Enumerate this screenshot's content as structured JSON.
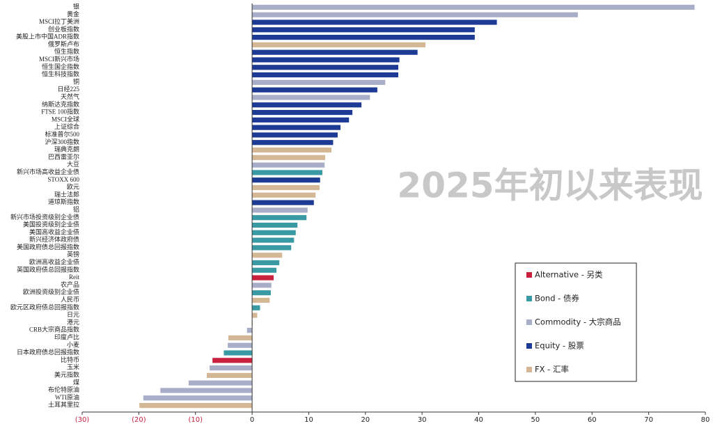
{
  "chart_data": {
    "type": "bar",
    "orientation": "horizontal",
    "title": "2025年初以来表现",
    "categories": [
      "银",
      "黄金",
      "MSCI拉丁美洲",
      "创业板指数",
      "美股上市中国ADR指数",
      "俄罗斯卢布",
      "恒生指数",
      "MSCI新兴市场",
      "恒生国企指数",
      "恒生科技指数",
      "铜",
      "日经225",
      "天然气",
      "纳斯达克指数",
      "FTSE 100指数",
      "MSCI全球",
      "上证综合",
      "标准普尔500",
      "沪深300指数",
      "瑞典克朗",
      "巴西雷亚尔",
      "大豆",
      "新兴市场高收益企业债",
      "STOXX 600",
      "欧元",
      "瑞士法郎",
      "道琼斯指数",
      "铝",
      "新兴市场投资级别企业债",
      "美国投资级别企业债",
      "美国高收益企业债",
      "新兴经济体政府债",
      "美国政府债总回报指数",
      "英镑",
      "欧洲高收益企业债",
      "英国政府债总回报指数",
      "Reit",
      "农产品",
      "欧洲投资级别企业债",
      "人民币",
      "欧元区政府债总回报指数",
      "日元",
      "港元",
      "CRB大宗商品指数",
      "印度卢比",
      "小麦",
      "日本政府债总回报指数",
      "比特币",
      "玉米",
      "美元指数",
      "煤",
      "布伦特原油",
      "WTI原油",
      "土耳其里拉"
    ],
    "series": [
      {
        "name": "Alternative - 另类",
        "color": "#c8203d",
        "values": [
          null,
          null,
          null,
          null,
          null,
          null,
          null,
          null,
          null,
          null,
          null,
          null,
          null,
          null,
          null,
          null,
          null,
          null,
          null,
          null,
          null,
          null,
          null,
          null,
          null,
          null,
          null,
          null,
          null,
          null,
          null,
          null,
          null,
          null,
          null,
          null,
          3.8,
          null,
          null,
          null,
          null,
          null,
          null,
          null,
          null,
          null,
          null,
          -7.0,
          null,
          null,
          null,
          null,
          null,
          null
        ]
      },
      {
        "name": "Bond - 债券",
        "color": "#3a9aa3",
        "values": [
          null,
          null,
          null,
          null,
          null,
          null,
          null,
          null,
          null,
          null,
          null,
          null,
          null,
          null,
          null,
          null,
          null,
          null,
          null,
          null,
          null,
          null,
          12.4,
          null,
          null,
          null,
          null,
          null,
          9.6,
          8.0,
          7.7,
          7.4,
          6.9,
          null,
          4.8,
          4.3,
          null,
          null,
          3.3,
          null,
          1.4,
          null,
          null,
          null,
          null,
          null,
          -5.0,
          null,
          null,
          null,
          null,
          null,
          null,
          null
        ]
      },
      {
        "name": "Commodity - 大宗商品",
        "color": "#a9aec8",
        "values": [
          78.1,
          57.5,
          null,
          null,
          null,
          null,
          null,
          null,
          null,
          null,
          23.5,
          null,
          20.8,
          null,
          null,
          null,
          null,
          null,
          null,
          null,
          null,
          12.8,
          null,
          null,
          null,
          null,
          null,
          9.8,
          null,
          null,
          null,
          null,
          null,
          null,
          null,
          null,
          null,
          3.4,
          null,
          null,
          null,
          null,
          null,
          -0.9,
          null,
          -4.3,
          null,
          null,
          -7.5,
          null,
          -11.2,
          -16.2,
          -19.2,
          null
        ]
      },
      {
        "name": "Equity - 股票",
        "color": "#1d3a94",
        "values": [
          null,
          null,
          43.2,
          39.3,
          39.3,
          null,
          29.2,
          26.0,
          25.8,
          25.8,
          null,
          22.1,
          null,
          19.3,
          17.7,
          17.1,
          15.6,
          15.1,
          14.3,
          null,
          null,
          null,
          null,
          12.0,
          null,
          null,
          10.9,
          null,
          null,
          null,
          null,
          null,
          null,
          null,
          null,
          null,
          null,
          null,
          null,
          null,
          null,
          null,
          null,
          null,
          null,
          null,
          null,
          null,
          null,
          null,
          null,
          null,
          null,
          null
        ]
      },
      {
        "name": "FX - 汇率",
        "color": "#d4b896",
        "values": [
          null,
          null,
          null,
          null,
          null,
          30.6,
          null,
          null,
          null,
          null,
          null,
          null,
          null,
          null,
          null,
          null,
          null,
          null,
          null,
          14.0,
          12.9,
          null,
          null,
          null,
          11.9,
          11.2,
          null,
          null,
          null,
          null,
          null,
          null,
          null,
          5.3,
          null,
          null,
          null,
          null,
          null,
          3.1,
          null,
          0.9,
          0.1,
          null,
          -4.2,
          null,
          null,
          null,
          null,
          -8.0,
          null,
          null,
          null,
          -19.9
        ]
      }
    ],
    "xlim": [
      -30,
      80
    ],
    "xticks": [
      {
        "value": -30,
        "label": "(30)"
      },
      {
        "value": -20,
        "label": "(20)"
      },
      {
        "value": -10,
        "label": "(10)"
      },
      0,
      10,
      20,
      30,
      40,
      50,
      60,
      70,
      80
    ],
    "negative_tick_color": "#c8203d",
    "grid": false
  }
}
